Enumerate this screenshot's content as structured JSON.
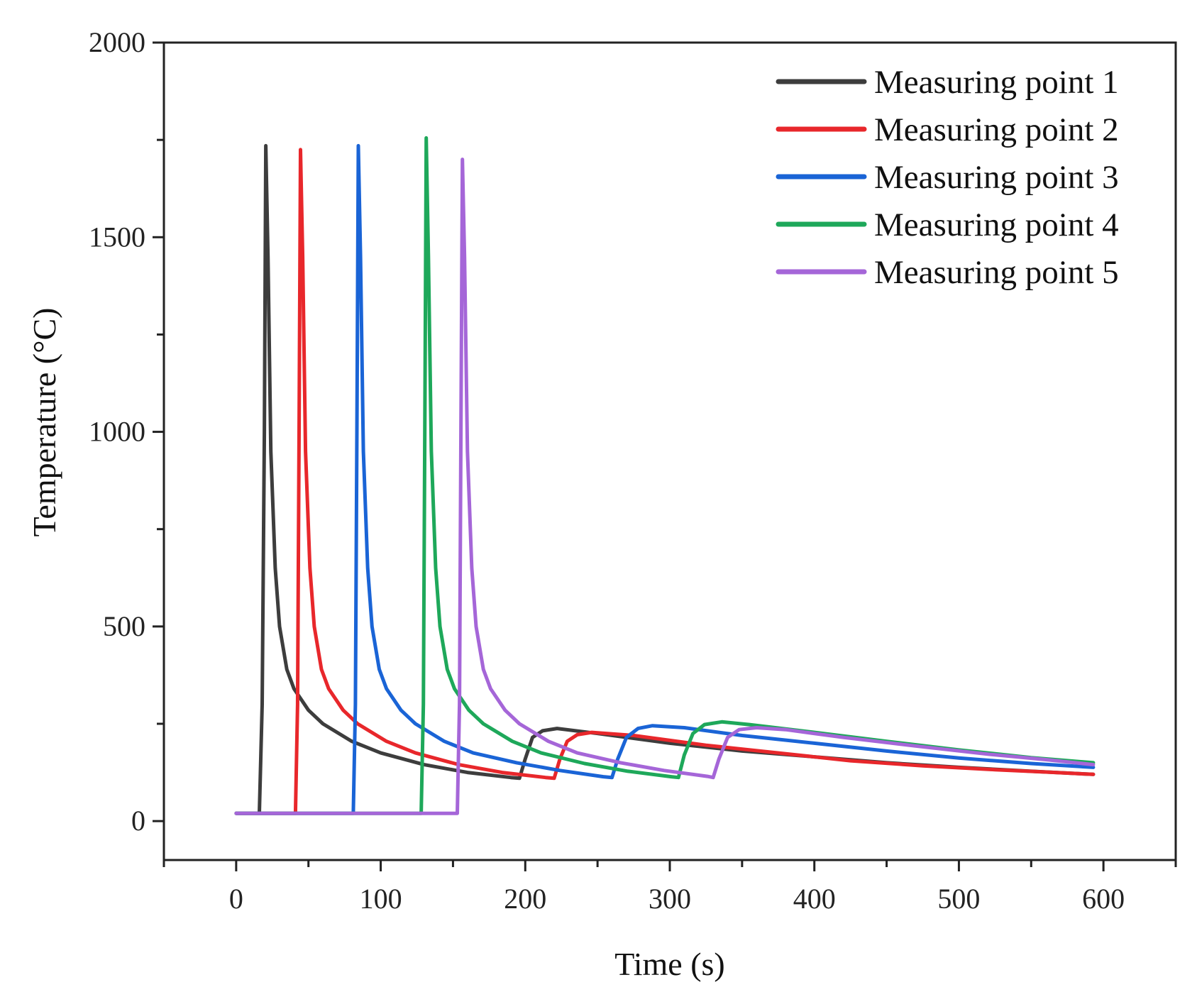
{
  "chart_data": {
    "type": "line",
    "title": "",
    "xlabel": "Time (s)",
    "ylabel": "Temperature (°C)",
    "xlim": [
      -50,
      650
    ],
    "ylim": [
      -100,
      2000
    ],
    "xticks": [
      0,
      100,
      200,
      300,
      400,
      500,
      600
    ],
    "yticks": [
      0,
      500,
      1000,
      1500,
      2000
    ],
    "grid": false,
    "legend_position": "top-right",
    "series": [
      {
        "name": "Measuring point 1",
        "color": "#3d3d3d",
        "points": [
          [
            0,
            20
          ],
          [
            16,
            20
          ],
          [
            18,
            300
          ],
          [
            19.5,
            1000
          ],
          [
            20.5,
            1735
          ],
          [
            22,
            1450
          ],
          [
            24,
            950
          ],
          [
            27,
            650
          ],
          [
            30,
            500
          ],
          [
            35,
            390
          ],
          [
            40,
            340
          ],
          [
            50,
            285
          ],
          [
            60,
            250
          ],
          [
            80,
            205
          ],
          [
            100,
            175
          ],
          [
            130,
            145
          ],
          [
            160,
            125
          ],
          [
            190,
            112
          ],
          [
            196,
            110
          ],
          [
            200,
            160
          ],
          [
            205,
            215
          ],
          [
            212,
            232
          ],
          [
            222,
            238
          ],
          [
            250,
            225
          ],
          [
            300,
            200
          ],
          [
            350,
            180
          ],
          [
            400,
            165
          ],
          [
            450,
            150
          ],
          [
            500,
            138
          ],
          [
            550,
            128
          ],
          [
            593,
            120
          ]
        ]
      },
      {
        "name": "Measuring point 2",
        "color": "#e8272b",
        "points": [
          [
            0,
            20
          ],
          [
            41,
            20
          ],
          [
            42.5,
            300
          ],
          [
            43.5,
            1000
          ],
          [
            44.5,
            1725
          ],
          [
            46,
            1450
          ],
          [
            48,
            950
          ],
          [
            51,
            650
          ],
          [
            54,
            500
          ],
          [
            59,
            390
          ],
          [
            64,
            340
          ],
          [
            74,
            285
          ],
          [
            84,
            250
          ],
          [
            104,
            205
          ],
          [
            124,
            175
          ],
          [
            154,
            145
          ],
          [
            184,
            125
          ],
          [
            214,
            112
          ],
          [
            220,
            110
          ],
          [
            224,
            160
          ],
          [
            229,
            205
          ],
          [
            236,
            222
          ],
          [
            246,
            228
          ],
          [
            275,
            220
          ],
          [
            325,
            195
          ],
          [
            375,
            175
          ],
          [
            425,
            155
          ],
          [
            475,
            142
          ],
          [
            525,
            132
          ],
          [
            560,
            126
          ],
          [
            593,
            120
          ]
        ]
      },
      {
        "name": "Measuring point 3",
        "color": "#1a64d6",
        "points": [
          [
            0,
            20
          ],
          [
            81,
            20
          ],
          [
            82.5,
            300
          ],
          [
            83.5,
            1000
          ],
          [
            84.5,
            1735
          ],
          [
            86,
            1450
          ],
          [
            88,
            950
          ],
          [
            91,
            650
          ],
          [
            94,
            500
          ],
          [
            99,
            390
          ],
          [
            104,
            340
          ],
          [
            114,
            285
          ],
          [
            124,
            250
          ],
          [
            144,
            205
          ],
          [
            164,
            175
          ],
          [
            194,
            150
          ],
          [
            224,
            130
          ],
          [
            254,
            114
          ],
          [
            260,
            112
          ],
          [
            264,
            160
          ],
          [
            270,
            215
          ],
          [
            278,
            238
          ],
          [
            288,
            245
          ],
          [
            310,
            240
          ],
          [
            350,
            220
          ],
          [
            400,
            200
          ],
          [
            450,
            180
          ],
          [
            500,
            162
          ],
          [
            550,
            148
          ],
          [
            593,
            138
          ]
        ]
      },
      {
        "name": "Measuring point 4",
        "color": "#1ea85a",
        "points": [
          [
            0,
            20
          ],
          [
            128,
            20
          ],
          [
            129.5,
            300
          ],
          [
            130.5,
            1000
          ],
          [
            131.5,
            1755
          ],
          [
            133,
            1450
          ],
          [
            135,
            950
          ],
          [
            138,
            650
          ],
          [
            141,
            500
          ],
          [
            146,
            390
          ],
          [
            151,
            340
          ],
          [
            161,
            285
          ],
          [
            171,
            250
          ],
          [
            191,
            205
          ],
          [
            211,
            175
          ],
          [
            241,
            148
          ],
          [
            271,
            128
          ],
          [
            301,
            114
          ],
          [
            306,
            112
          ],
          [
            310,
            170
          ],
          [
            316,
            225
          ],
          [
            324,
            248
          ],
          [
            336,
            255
          ],
          [
            355,
            248
          ],
          [
            400,
            228
          ],
          [
            450,
            205
          ],
          [
            500,
            183
          ],
          [
            550,
            163
          ],
          [
            593,
            150
          ]
        ]
      },
      {
        "name": "Measuring point 5",
        "color": "#a566d8",
        "points": [
          [
            0,
            20
          ],
          [
            153,
            20
          ],
          [
            154.5,
            300
          ],
          [
            155.5,
            1000
          ],
          [
            156.5,
            1700
          ],
          [
            158,
            1450
          ],
          [
            160,
            950
          ],
          [
            163,
            650
          ],
          [
            166,
            500
          ],
          [
            171,
            390
          ],
          [
            176,
            340
          ],
          [
            186,
            285
          ],
          [
            196,
            250
          ],
          [
            216,
            205
          ],
          [
            236,
            175
          ],
          [
            266,
            150
          ],
          [
            296,
            130
          ],
          [
            326,
            115
          ],
          [
            330,
            112
          ],
          [
            334,
            160
          ],
          [
            340,
            215
          ],
          [
            348,
            235
          ],
          [
            360,
            240
          ],
          [
            380,
            235
          ],
          [
            420,
            215
          ],
          [
            470,
            193
          ],
          [
            520,
            172
          ],
          [
            560,
            158
          ],
          [
            593,
            145
          ]
        ]
      }
    ]
  }
}
